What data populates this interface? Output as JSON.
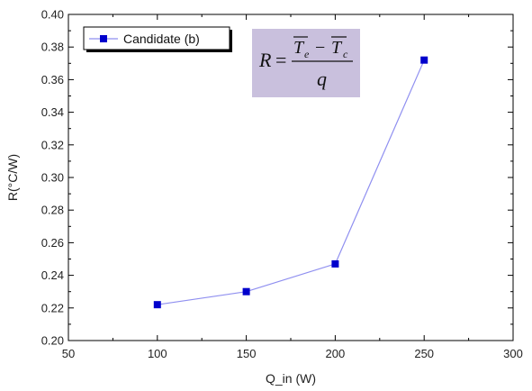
{
  "chart_data": {
    "type": "line",
    "x": [
      100,
      150,
      200,
      250
    ],
    "series": [
      {
        "name": "Candidate (b)",
        "values": [
          0.222,
          0.23,
          0.247,
          0.372
        ],
        "color": "#0000cc",
        "line_color": "#8f8ff0"
      }
    ],
    "xlabel": "Q_in (W)",
    "ylabel": "R(°C/W)",
    "xlim": [
      50,
      300
    ],
    "ylim": [
      0.2,
      0.4
    ],
    "x_ticks": [
      "50",
      "100",
      "150",
      "200",
      "250",
      "300"
    ],
    "y_ticks": [
      "0.20",
      "0.22",
      "0.24",
      "0.26",
      "0.28",
      "0.30",
      "0.32",
      "0.34",
      "0.36",
      "0.38",
      "0.40"
    ],
    "grid": false,
    "legend_position": "top-left",
    "annotation": {
      "lhs": "R",
      "equals": "=",
      "te": "T",
      "te_sub": "e",
      "minus": "−",
      "tc": "T",
      "tc_sub": "c",
      "denominator": "q",
      "background": "#c9c0dd"
    }
  }
}
